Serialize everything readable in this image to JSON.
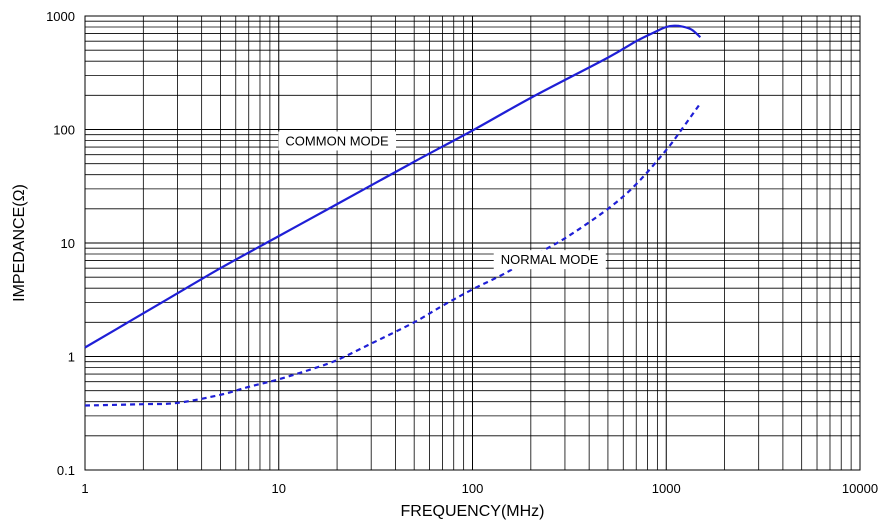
{
  "chart_data": {
    "type": "line",
    "title": "",
    "xlabel": "FREQUENCY(MHz)",
    "ylabel": "IMPEDANCE(Ω)",
    "x_scale": "log",
    "y_scale": "log",
    "xlim": [
      1,
      10000
    ],
    "ylim": [
      0.1,
      1000
    ],
    "grid": true,
    "x_ticks": [
      1,
      10,
      100,
      1000,
      10000
    ],
    "x_tick_labels": [
      "1",
      "10",
      "100",
      "1000",
      "10000"
    ],
    "y_ticks": [
      0.1,
      1,
      10,
      100,
      1000
    ],
    "y_tick_labels": [
      "0.1",
      "1",
      "10",
      "100",
      "1000"
    ],
    "series": [
      {
        "name": "COMMON MODE",
        "style": "solid",
        "color": "#1f1fd6",
        "x": [
          1,
          2,
          3,
          5,
          10,
          20,
          50,
          100,
          200,
          500,
          700,
          900,
          1000,
          1100,
          1200,
          1350,
          1500
        ],
        "y": [
          1.2,
          2.4,
          3.6,
          6.0,
          11.5,
          22,
          52,
          98,
          190,
          430,
          600,
          740,
          800,
          820,
          810,
          760,
          650
        ]
      },
      {
        "name": "NORMAL MODE",
        "style": "dashed",
        "color": "#1f1fd6",
        "x": [
          1,
          2,
          3,
          5,
          7,
          10,
          15,
          20,
          30,
          50,
          70,
          100,
          150,
          200,
          300,
          500,
          700,
          1000,
          1200,
          1500
        ],
        "y": [
          0.37,
          0.38,
          0.39,
          0.46,
          0.54,
          0.63,
          0.78,
          0.93,
          1.3,
          2.0,
          2.8,
          3.9,
          5.5,
          7.5,
          11,
          20,
          33,
          66,
          100,
          170
        ]
      }
    ],
    "annotations": [
      {
        "text": "COMMON MODE",
        "x": 20,
        "y": 80
      },
      {
        "text": "NORMAL MODE",
        "x": 250,
        "y": 7.2
      }
    ]
  }
}
